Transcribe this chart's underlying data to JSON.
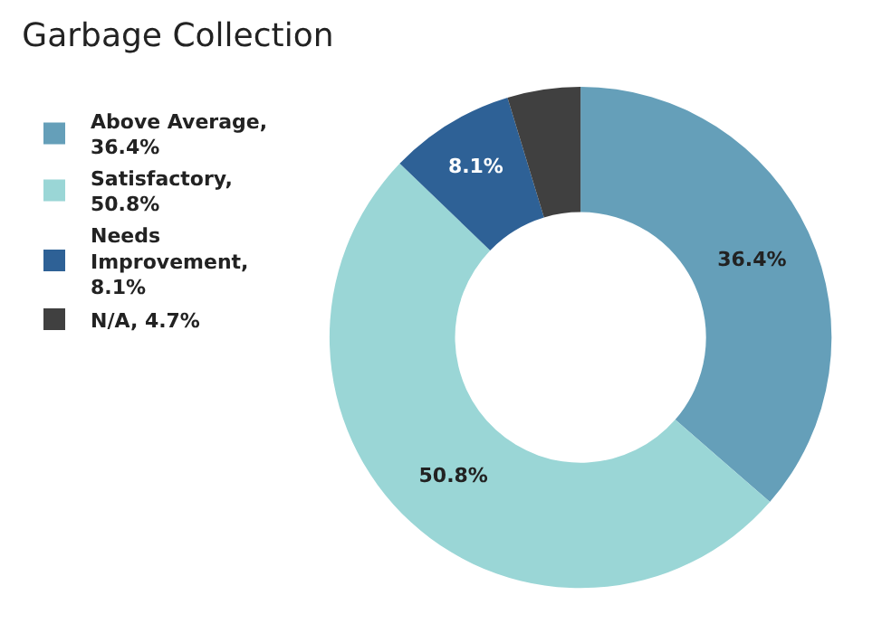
{
  "chart_data": {
    "type": "donut",
    "title": "Garbage Collection",
    "categories": [
      "Above Average, 36.4%",
      "Satisfactory, 50.8%",
      "Needs Improvement, 8.1%",
      "N/A, 4.7%"
    ],
    "values": [
      36.4,
      50.8,
      8.1,
      4.7
    ],
    "colors": [
      "#659fb9",
      "#9ad6d6",
      "#2e6196",
      "#404040"
    ],
    "value_labels": [
      "36.4%",
      "50.8%",
      "8.1%",
      null
    ],
    "legend": "top left"
  }
}
